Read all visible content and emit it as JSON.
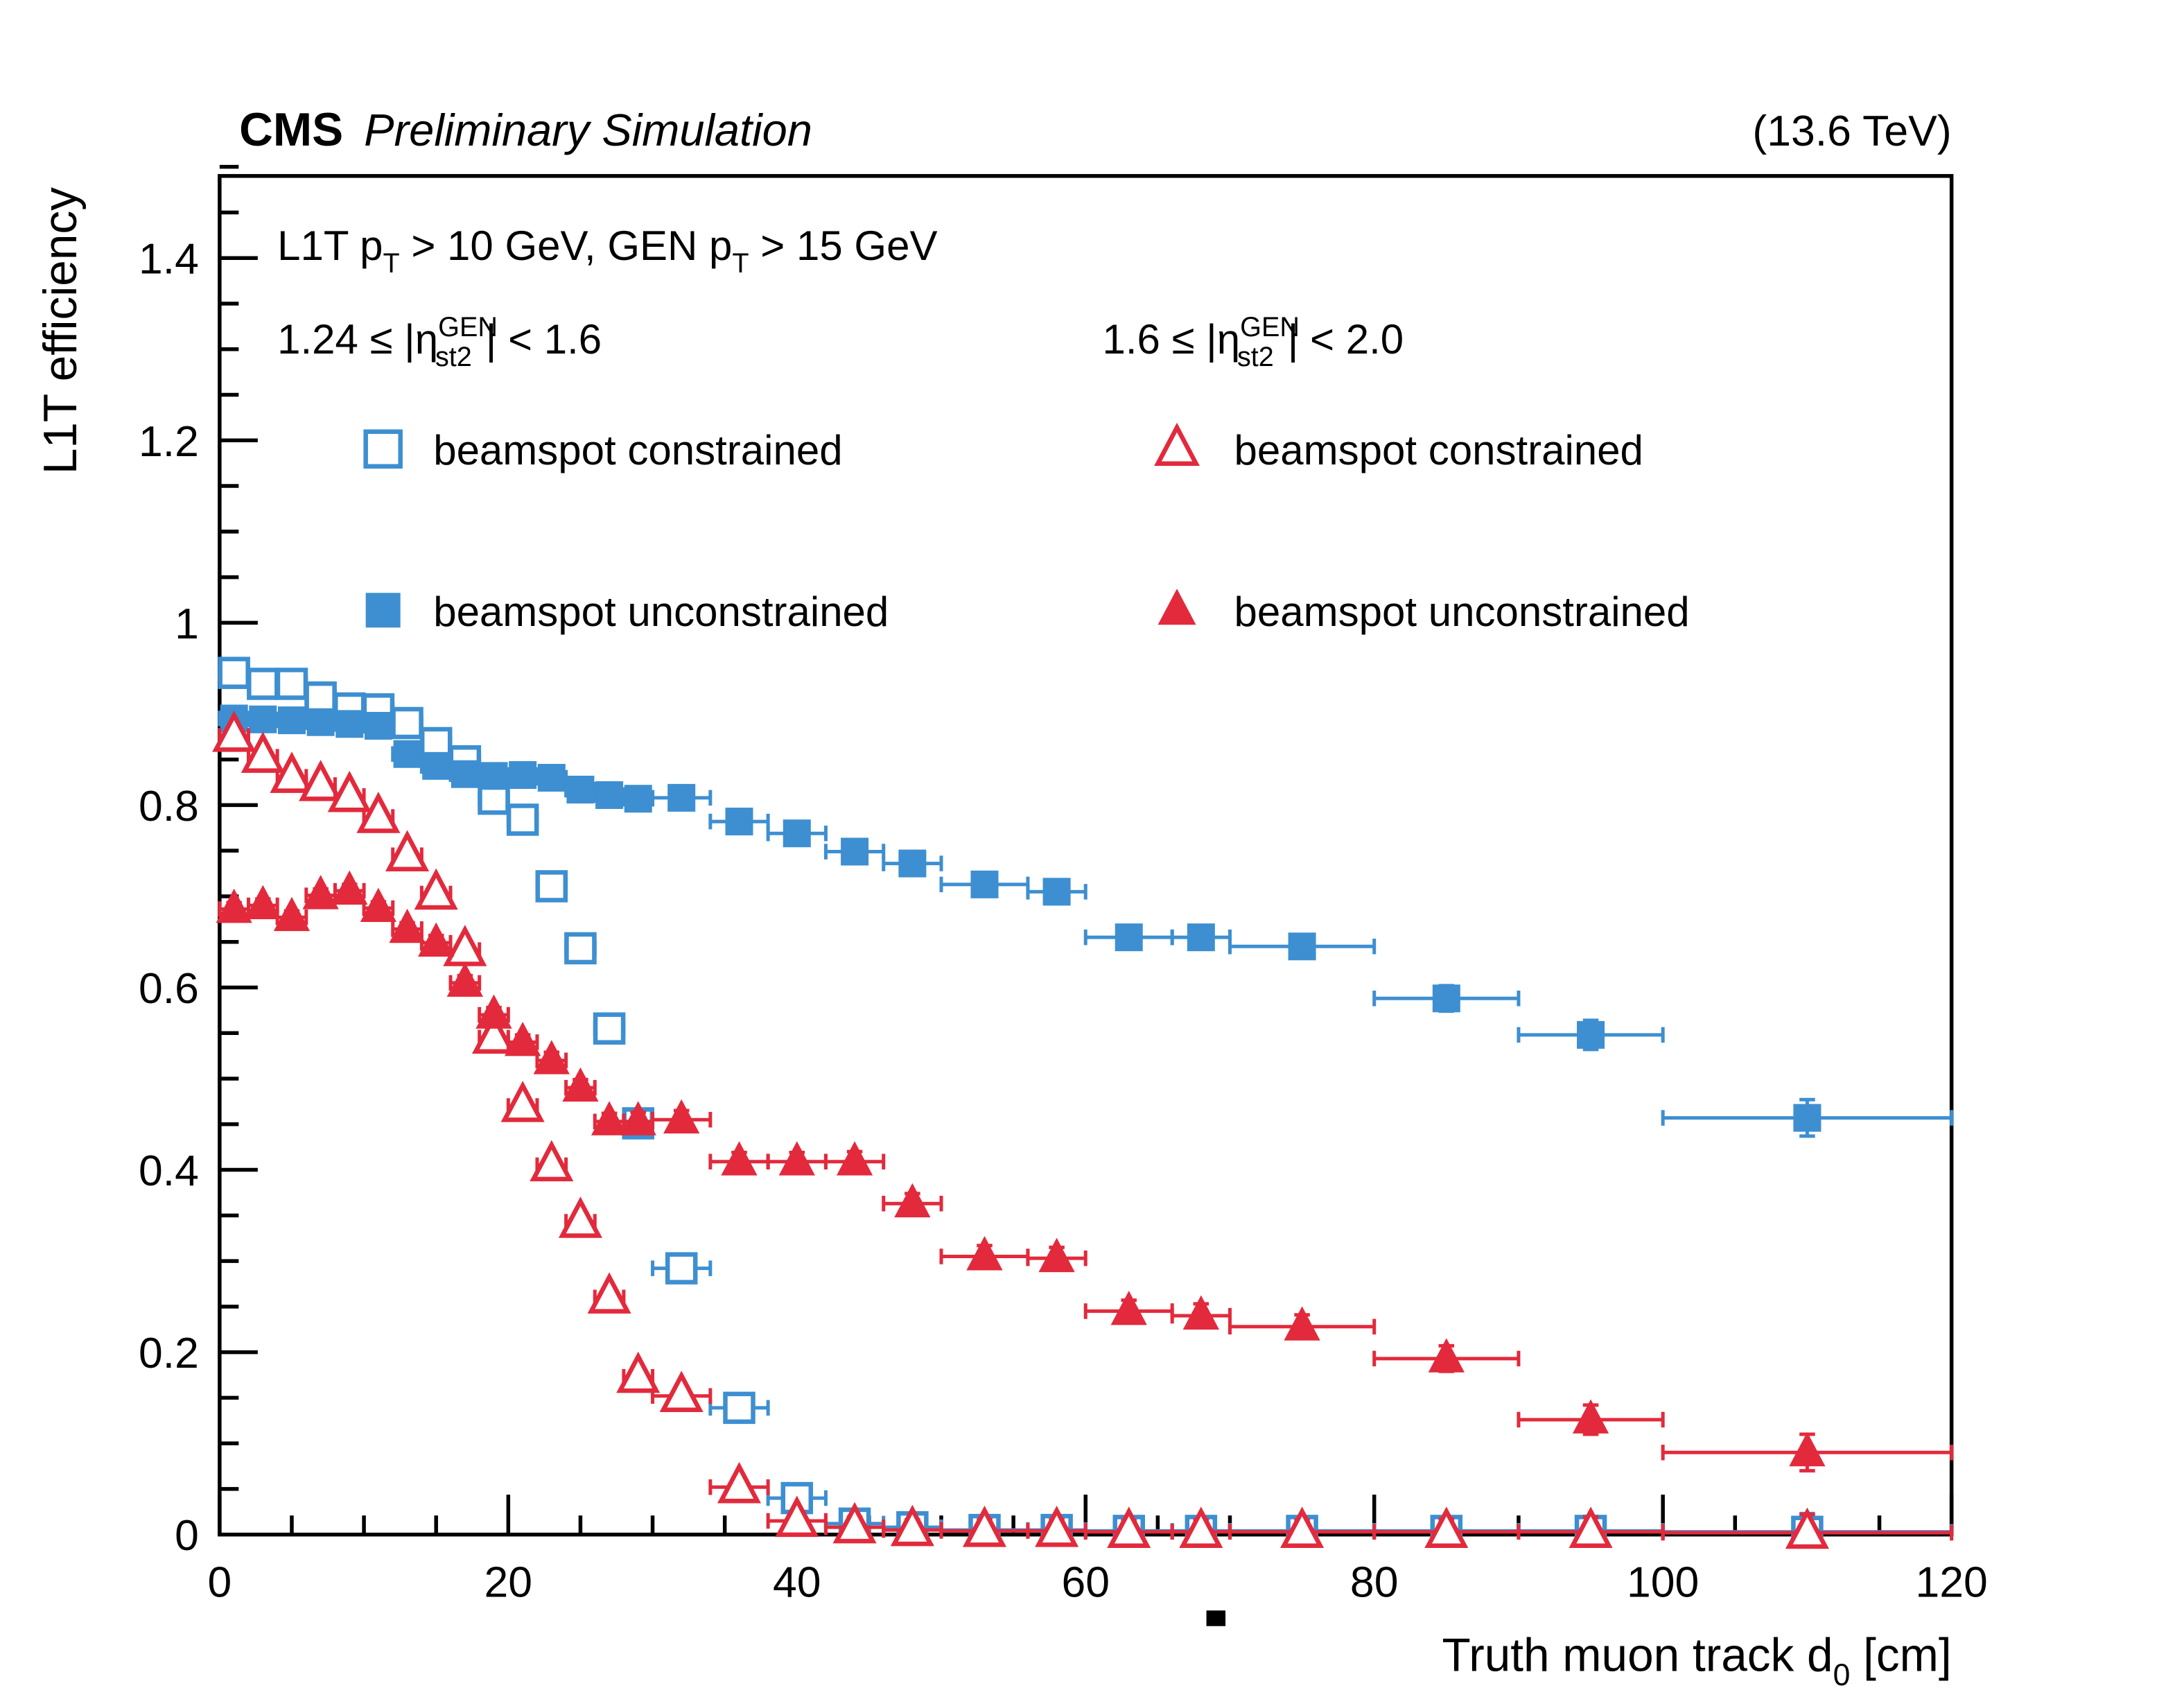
{
  "header": {
    "experiment": "CMS",
    "context": "Preliminary Simulation",
    "energy": "(13.6 TeV)"
  },
  "selection": {
    "header_text": "L1T pT > 10 GeV, GEN pT > 15 GeV",
    "header_parts": [
      {
        "t": "L1T p"
      },
      {
        "t": "T",
        "sub": 1
      },
      {
        "t": " > 10 GeV, GEN p"
      },
      {
        "t": "T",
        "sub": 1
      },
      {
        "t": " > 15 GeV"
      }
    ]
  },
  "chart_data": {
    "type": "scatter",
    "title": "CMS Preliminary Simulation (13.6 TeV)",
    "xlabel_text": "Truth muon track d0 [cm]",
    "xlabel_parts": [
      {
        "t": "Truth muon track d"
      },
      {
        "t": "0",
        "sub": 1
      },
      {
        "t": " [cm]"
      }
    ],
    "ylabel": "L1T efficiency",
    "xlim": [
      0,
      120
    ],
    "ylim": [
      0,
      1.49
    ],
    "x_major_ticks": [
      0,
      20,
      40,
      60,
      80,
      100,
      120
    ],
    "x_minor_step": 5,
    "y_major_step": 0.2,
    "y_minor_step": 0.05,
    "y_major_labels": [
      "0",
      "0.2",
      "0.4",
      "0.6",
      "0.8",
      "1",
      "1.2",
      "1.4"
    ],
    "grid": false,
    "bins": {
      "centers": [
        1,
        3,
        5,
        7,
        9,
        11,
        13,
        15,
        17,
        19,
        21,
        23,
        25,
        27,
        29,
        32,
        36,
        40,
        44,
        48,
        53,
        58,
        63,
        68,
        75,
        85,
        95,
        110
      ],
      "halfwidths": [
        1,
        1,
        1,
        1,
        1,
        1,
        1,
        1,
        1,
        1,
        1,
        1,
        1,
        1,
        1,
        2,
        2,
        2,
        2,
        2,
        3,
        2,
        3,
        2,
        5,
        5,
        5,
        10
      ]
    },
    "yerr": [
      0.007,
      0.007,
      0.007,
      0.007,
      0.007,
      0.007,
      0.007,
      0.008,
      0.008,
      0.008,
      0.008,
      0.009,
      0.009,
      0.009,
      0.01,
      0.01,
      0.01,
      0.01,
      0.011,
      0.011,
      0.012,
      0.012,
      0.012,
      0.013,
      0.013,
      0.014,
      0.016,
      0.02
    ],
    "series": [
      {
        "id": "eta-1p24-1p6-beamspot-constrained",
        "eta_region": "1.24 <= |eta_st2_GEN| < 1.6",
        "label": "beamspot constrained",
        "marker": "square-open",
        "color": "#3d8fd1",
        "values": [
          0.945,
          0.933,
          0.933,
          0.918,
          0.906,
          0.905,
          0.89,
          0.868,
          0.848,
          0.807,
          0.784,
          0.711,
          0.643,
          0.555,
          0.451,
          0.292,
          0.139,
          0.04,
          0.012,
          0.008,
          0.005,
          0.005,
          0.004,
          0.004,
          0.004,
          0.004,
          0.004,
          0.003
        ]
      },
      {
        "id": "eta-1p24-1p6-beamspot-unconstrained",
        "eta_region": "1.24 <= |eta_st2_GEN| < 1.6",
        "label": "beamspot unconstrained",
        "marker": "square-filled",
        "color": "#3d8fd1",
        "values": [
          0.895,
          0.894,
          0.893,
          0.891,
          0.889,
          0.887,
          0.856,
          0.843,
          0.834,
          0.832,
          0.833,
          0.83,
          0.817,
          0.811,
          0.807,
          0.808,
          0.782,
          0.769,
          0.749,
          0.736,
          0.713,
          0.705,
          0.655,
          0.655,
          0.645,
          0.588,
          0.548,
          0.457
        ]
      },
      {
        "id": "eta-1p6-2p0-beamspot-constrained",
        "eta_region": "1.6 <= |eta_st2_GEN| < 2.0",
        "label": "beamspot constrained",
        "marker": "triangle-open",
        "color": "#e22a3c",
        "values": [
          0.876,
          0.853,
          0.831,
          0.822,
          0.81,
          0.787,
          0.745,
          0.703,
          0.641,
          0.545,
          0.47,
          0.405,
          0.343,
          0.26,
          0.173,
          0.152,
          0.052,
          0.015,
          0.008,
          0.005,
          0.004,
          0.004,
          0.003,
          0.003,
          0.003,
          0.003,
          0.003,
          0.002
        ]
      },
      {
        "id": "eta-1p6-2p0-beamspot-unconstrained",
        "eta_region": "1.6 <= |eta_st2_GEN| < 2.0",
        "label": "beamspot unconstrained",
        "marker": "triangle-filled",
        "color": "#e22a3c",
        "values": [
          0.686,
          0.69,
          0.677,
          0.701,
          0.706,
          0.687,
          0.664,
          0.649,
          0.605,
          0.57,
          0.54,
          0.52,
          0.49,
          0.453,
          0.453,
          0.455,
          0.409,
          0.409,
          0.409,
          0.363,
          0.305,
          0.303,
          0.245,
          0.24,
          0.228,
          0.193,
          0.126,
          0.09
        ]
      }
    ],
    "legend": {
      "eta_left_text": "1.24 ≤ |ηst2GEN| < 1.6",
      "eta_left_parts": [
        {
          "t": "1.24 ≤ |η"
        },
        {
          "t": "GEN",
          "sup": 1
        },
        {
          "t": "st2",
          "sub": 1,
          "dx": -36
        },
        {
          "t": "| < 1.6",
          "dx": 8
        }
      ],
      "eta_right_text": "1.6 ≤ |ηst2GEN| < 2.0",
      "eta_right_parts": [
        {
          "t": "1.6 ≤ |η"
        },
        {
          "t": "GEN",
          "sup": 1
        },
        {
          "t": "st2",
          "sub": 1,
          "dx": -36
        },
        {
          "t": "| < 2.0",
          "dx": 8
        }
      ],
      "rows": [
        "beamspot constrained",
        "beamspot unconstrained"
      ],
      "position": "top-inside"
    }
  }
}
